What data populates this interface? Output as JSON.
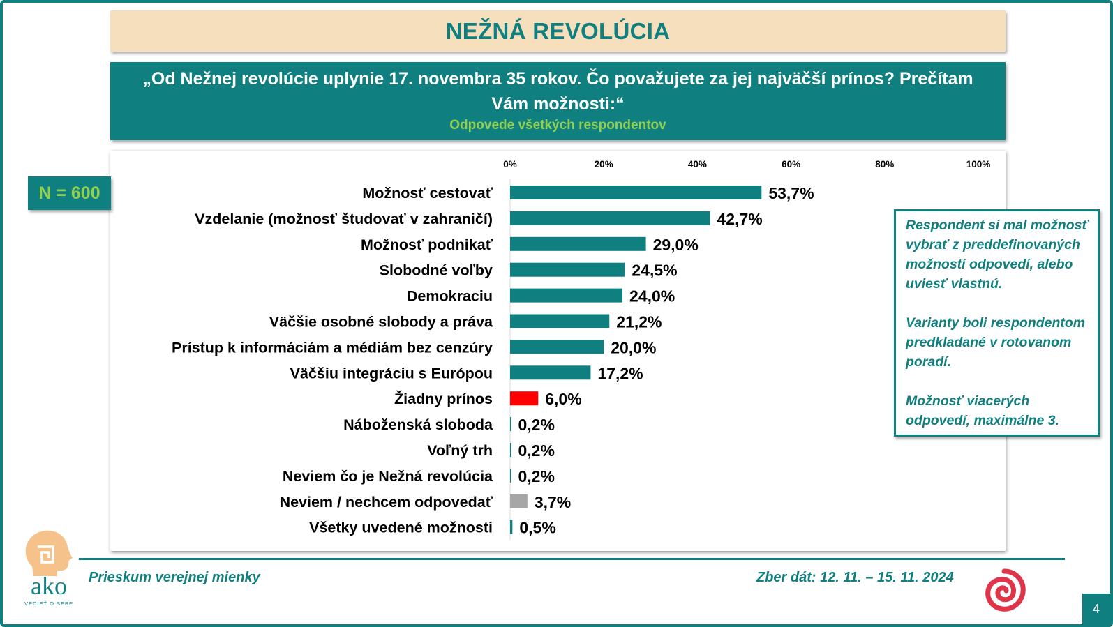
{
  "header": {
    "title": "NEŽNÁ REVOLÚCIA",
    "question": "„Od Nežnej revolúcie uplynie 17. novembra 35 rokov. Čo považujete za jej najväčší prínos? Prečítam Vám možnosti:“",
    "subtitle": "Odpovede všetkých respondentov"
  },
  "sample": {
    "label": "N = 600"
  },
  "note": {
    "p1": "Respondent si mal možnosť vybrať z preddefinovaných možností odpovedí, alebo uviesť vlastnú.",
    "p2": "Varianty boli respondentom predkladané v rotovanom poradí.",
    "p3": "Možnosť viacerých odpovedí, maximálne 3."
  },
  "footer": {
    "left": "Prieskum verejnej mienky",
    "right": "Zber dát: 12. 11. – 15. 11. 2024",
    "page": "4"
  },
  "logo": {
    "brand": "ako",
    "tagline": "VEDIEŤ O SEBE"
  },
  "colors": {
    "accent": "#0f7f7f",
    "green": "#92d050",
    "bar": "#0f7f7f",
    "bar_none": "#ff0000",
    "bar_dontknow": "#a6a6a6"
  },
  "chart_data": {
    "type": "bar",
    "orientation": "horizontal",
    "xlim": [
      0,
      100
    ],
    "ticks": [
      "0%",
      "20%",
      "40%",
      "60%",
      "80%",
      "100%"
    ],
    "tick_values": [
      0,
      20,
      40,
      60,
      80,
      100
    ],
    "categories": [
      "Možnosť cestovať",
      "Vzdelanie (možnosť študovať v zahraničí)",
      "Možnosť podnikať",
      "Slobodné voľby",
      "Demokraciu",
      "Väčšie osobné slobody a práva",
      "Prístup k informáciám a médiám bez cenzúry",
      "Väčšiu integráciu s Európou",
      "Žiadny prínos",
      "Náboženská sloboda",
      "Voľný trh",
      "Neviem čo je Nežná revolúcia",
      "Neviem / nechcem odpovedať",
      "Všetky uvedené možnosti"
    ],
    "values": [
      53.7,
      42.7,
      29.0,
      24.5,
      24.0,
      21.2,
      20.0,
      17.2,
      6.0,
      0.2,
      0.2,
      0.2,
      3.7,
      0.5
    ],
    "labels": [
      "53,7%",
      "42,7%",
      "29,0%",
      "24,5%",
      "24,0%",
      "21,2%",
      "20,0%",
      "17,2%",
      "6,0%",
      "0,2%",
      "0,2%",
      "0,2%",
      "3,7%",
      "0,5%"
    ],
    "bar_colors": [
      "#0f7f7f",
      "#0f7f7f",
      "#0f7f7f",
      "#0f7f7f",
      "#0f7f7f",
      "#0f7f7f",
      "#0f7f7f",
      "#0f7f7f",
      "#ff0000",
      "#0f7f7f",
      "#0f7f7f",
      "#0f7f7f",
      "#a6a6a6",
      "#0f7f7f"
    ],
    "grid": false,
    "legend": "none"
  }
}
